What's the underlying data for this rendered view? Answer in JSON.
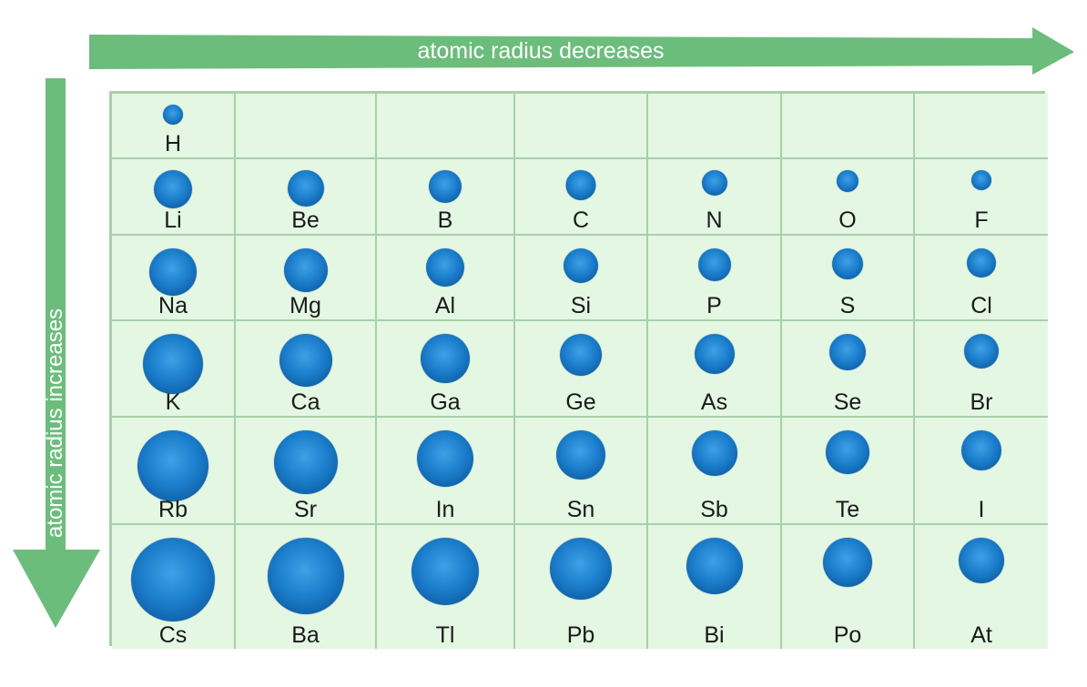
{
  "arrows": {
    "horizontal_label": "atomic radius decreases",
    "vertical_label": "atomic radius increases"
  },
  "colors": {
    "arrow": "#6cbd7c",
    "cell_background": "#e3f7e3",
    "grid_line": "#a9cfa9",
    "atom": "#1c7fcd"
  },
  "table": {
    "rows": [
      [
        {
          "symbol": "H"
        },
        null,
        null,
        null,
        null,
        null,
        null
      ],
      [
        {
          "symbol": "Li"
        },
        {
          "symbol": "Be"
        },
        {
          "symbol": "B"
        },
        {
          "symbol": "C"
        },
        {
          "symbol": "N"
        },
        {
          "symbol": "O"
        },
        {
          "symbol": "F"
        }
      ],
      [
        {
          "symbol": "Na"
        },
        {
          "symbol": "Mg"
        },
        {
          "symbol": "Al"
        },
        {
          "symbol": "Si"
        },
        {
          "symbol": "P"
        },
        {
          "symbol": "S"
        },
        {
          "symbol": "Cl"
        }
      ],
      [
        {
          "symbol": "K"
        },
        {
          "symbol": "Ca"
        },
        {
          "symbol": "Ga"
        },
        {
          "symbol": "Ge"
        },
        {
          "symbol": "As"
        },
        {
          "symbol": "Se"
        },
        {
          "symbol": "Br"
        }
      ],
      [
        {
          "symbol": "Rb"
        },
        {
          "symbol": "Sr"
        },
        {
          "symbol": "In"
        },
        {
          "symbol": "Sn"
        },
        {
          "symbol": "Sb"
        },
        {
          "symbol": "Te"
        },
        {
          "symbol": "I"
        }
      ],
      [
        {
          "symbol": "Cs"
        },
        {
          "symbol": "Ba"
        },
        {
          "symbol": "Tl"
        },
        {
          "symbol": "Pb"
        },
        {
          "symbol": "Bi"
        },
        {
          "symbol": "Po"
        },
        {
          "symbol": "At"
        }
      ]
    ]
  }
}
